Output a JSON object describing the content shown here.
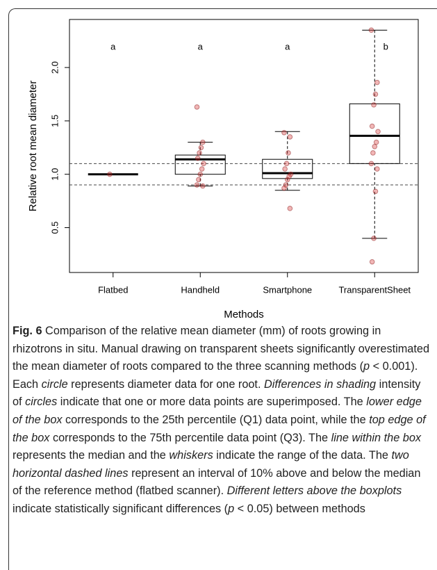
{
  "chart_data": {
    "type": "box",
    "ylabel": "Relative root mean diameter",
    "xlabel": "Methods",
    "categories": [
      "Flatbed",
      "Handheld",
      "Smartphone",
      "TransparentSheet"
    ],
    "boxes": [
      {
        "whisker_low": 1.0,
        "q1": 1.0,
        "median": 1.0,
        "q3": 1.0,
        "whisker_high": 1.0,
        "points": [
          1.0
        ]
      },
      {
        "whisker_low": 0.89,
        "q1": 1.0,
        "median": 1.14,
        "q3": 1.18,
        "whisker_high": 1.3,
        "points": [
          1.63,
          1.3,
          1.25,
          1.2,
          1.15,
          1.1,
          1.05,
          1.0,
          0.95,
          0.9,
          0.89
        ]
      },
      {
        "whisker_low": 0.85,
        "q1": 0.96,
        "median": 1.01,
        "q3": 1.14,
        "whisker_high": 1.4,
        "points": [
          1.39,
          1.35,
          1.2,
          1.1,
          1.05,
          1.0,
          0.98,
          0.95,
          0.9,
          0.87,
          0.68
        ]
      },
      {
        "whisker_low": 0.4,
        "q1": 1.1,
        "median": 1.36,
        "q3": 1.66,
        "whisker_high": 2.35,
        "points": [
          2.35,
          1.86,
          1.75,
          1.65,
          1.45,
          1.4,
          1.3,
          1.26,
          1.2,
          1.1,
          1.05,
          0.84,
          0.4,
          0.18
        ]
      }
    ],
    "letters": [
      "a",
      "a",
      "a",
      "b"
    ],
    "reference_lines": [
      0.9,
      1.1
    ],
    "point_color": "#d62f2f",
    "ylim": [
      0.08,
      2.45
    ],
    "yticks": [
      0.5,
      {
        "value": 1,
        "label": "1.0"
      },
      1.5,
      {
        "value": 2,
        "label": "2.0"
      }
    ]
  },
  "caption": {
    "label": "Fig. 6",
    "runs": [
      {
        "text": " Comparison of the relative mean diameter (mm) of roots growing in rhizotrons in situ. Manual drawing on transparent sheets significantly overestimated the mean diameter of roots compared to the three scanning methods (",
        "italic": false
      },
      {
        "text": "p",
        "italic": true
      },
      {
        "text": " < 0.001). Each ",
        "italic": false
      },
      {
        "text": "circle",
        "italic": true
      },
      {
        "text": " represents diameter data for one root. ",
        "italic": false
      },
      {
        "text": "Differences in shading",
        "italic": true
      },
      {
        "text": " intensity of ",
        "italic": false
      },
      {
        "text": "circles",
        "italic": true
      },
      {
        "text": " indicate that one or more data points are superimposed. The ",
        "italic": false
      },
      {
        "text": "lower edge of the box",
        "italic": true
      },
      {
        "text": " corresponds to the 25th percentile (Q1) data point, while the ",
        "italic": false
      },
      {
        "text": "top edge of the box",
        "italic": true
      },
      {
        "text": " corresponds to the 75th percentile data point (Q3). The ",
        "italic": false
      },
      {
        "text": "line within the box",
        "italic": true
      },
      {
        "text": " represents the median and the ",
        "italic": false
      },
      {
        "text": "whiskers",
        "italic": true
      },
      {
        "text": " indicate the range of the data. The ",
        "italic": false
      },
      {
        "text": "two horizontal dashed lines",
        "italic": true
      },
      {
        "text": " represent an interval of 10% above and below the median of the reference method (flatbed scanner). ",
        "italic": false
      },
      {
        "text": "Different letters above the boxplots",
        "italic": true
      },
      {
        "text": " indicate statistically significant differences (",
        "italic": false
      },
      {
        "text": "p",
        "italic": true
      },
      {
        "text": " < 0.05) between methods",
        "italic": false
      }
    ]
  }
}
